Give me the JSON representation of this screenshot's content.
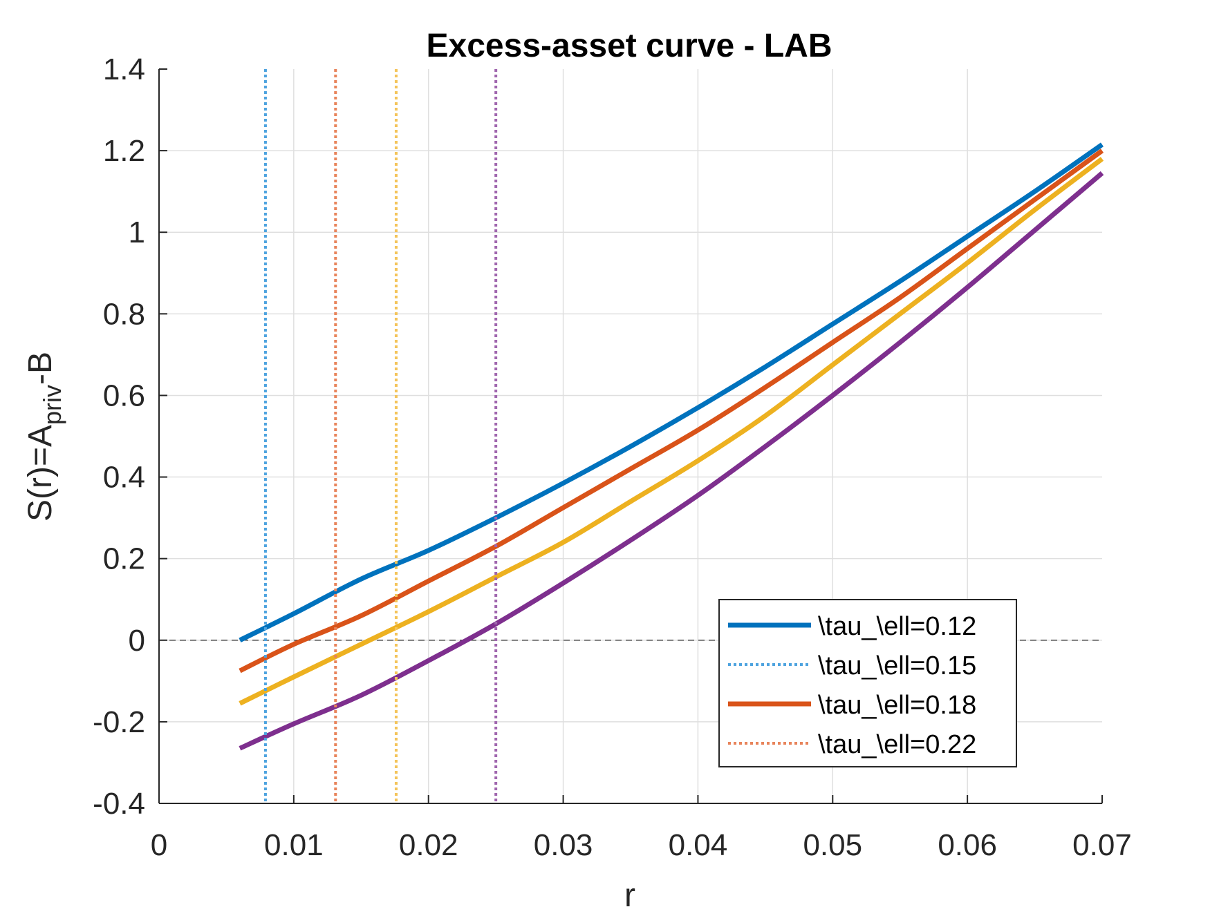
{
  "chart_data": {
    "type": "line",
    "title": "Excess-asset curve - LAB",
    "xlabel": "r",
    "ylabel": {
      "main": "S(r)=A",
      "sub": "priv",
      "tail": "-B"
    },
    "xlim": [
      0,
      0.07
    ],
    "ylim": [
      -0.4,
      1.4
    ],
    "xticks": [
      0,
      0.01,
      0.02,
      0.03,
      0.04,
      0.05,
      0.06,
      0.07
    ],
    "xtick_labels": [
      "0",
      "0.01",
      "0.02",
      "0.03",
      "0.04",
      "0.05",
      "0.06",
      "0.07"
    ],
    "yticks": [
      -0.4,
      -0.2,
      0,
      0.2,
      0.4,
      0.6,
      0.8,
      1,
      1.2,
      1.4
    ],
    "ytick_labels": [
      "-0.4",
      "-0.2",
      "0",
      "0.2",
      "0.4",
      "0.6",
      "0.8",
      "1",
      "1.2",
      "1.4"
    ],
    "grid": true,
    "legend_position": "bottom-right",
    "zero_line": {
      "y": 0,
      "style": "dashed",
      "color": "#404040"
    },
    "x": [
      0.006,
      0.01,
      0.015,
      0.02,
      0.025,
      0.03,
      0.035,
      0.04,
      0.045,
      0.05,
      0.055,
      0.06,
      0.065,
      0.07
    ],
    "series": [
      {
        "name": "\\tau_\\ell=0.12",
        "color": "#0072BD",
        "style": "solid",
        "values": [
          0.0,
          0.065,
          0.15,
          0.22,
          0.3,
          0.385,
          0.475,
          0.57,
          0.67,
          0.775,
          0.88,
          0.99,
          1.1,
          1.215
        ]
      },
      {
        "color": "#D95319",
        "style": "solid",
        "values": [
          -0.075,
          -0.01,
          0.06,
          0.145,
          0.23,
          0.325,
          0.42,
          0.515,
          0.62,
          0.73,
          0.84,
          0.96,
          1.08,
          1.2
        ]
      },
      {
        "color": "#EDB120",
        "style": "solid",
        "values": [
          -0.155,
          -0.09,
          -0.01,
          0.07,
          0.155,
          0.24,
          0.34,
          0.44,
          0.55,
          0.675,
          0.8,
          0.925,
          1.055,
          1.18
        ]
      },
      {
        "color": "#7E2F8E",
        "style": "solid",
        "values": [
          -0.265,
          -0.205,
          -0.135,
          -0.05,
          0.04,
          0.14,
          0.245,
          0.355,
          0.475,
          0.6,
          0.73,
          0.865,
          1.005,
          1.145
        ]
      }
    ],
    "vlines": [
      {
        "name": "\\tau_\\ell=0.15",
        "x": 0.0079,
        "color": "#4DA3DF",
        "style": "dotted"
      },
      {
        "name": "\\tau_\\ell=0.22",
        "x": 0.0131,
        "color": "#E8845B",
        "style": "dotted"
      },
      {
        "x": 0.0176,
        "color": "#F4C45A",
        "style": "dotted"
      },
      {
        "x": 0.025,
        "color": "#A066AE",
        "style": "dotted"
      }
    ],
    "legend": [
      {
        "label": "\\tau_\\ell=0.12",
        "color": "#0072BD",
        "style": "solid"
      },
      {
        "label": "\\tau_\\ell=0.15",
        "color": "#4DA3DF",
        "style": "dotted"
      },
      {
        "label": "\\tau_\\ell=0.18",
        "color": "#D95319",
        "style": "solid"
      },
      {
        "label": "\\tau_\\ell=0.22",
        "color": "#E8845B",
        "style": "dotted"
      }
    ]
  }
}
